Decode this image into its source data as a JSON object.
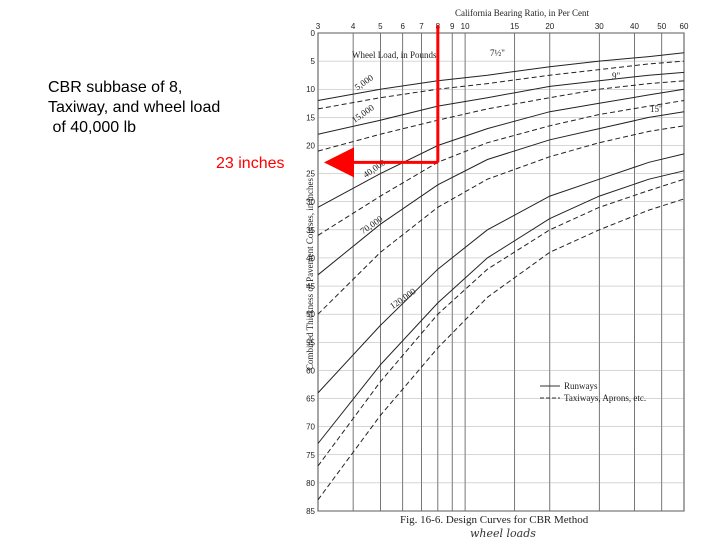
{
  "annotation": {
    "lines": [
      "CBR subbase of 8,",
      "Taxiway, and wheel load",
      " of 40,000 lb"
    ],
    "result": "23 inches"
  },
  "chart_data": {
    "type": "line",
    "title": "California Bearing Ratio, in Per Cent",
    "xlabel": "California Bearing Ratio, in Per Cent",
    "ylabel": "Combined Thickness of Pavement Courses, in Inches",
    "x_scale": "log",
    "xlim": [
      3,
      60
    ],
    "ylim": [
      0,
      85
    ],
    "y_inverted": true,
    "grid": true,
    "x_ticks": [
      "3",
      "4",
      "5",
      "6",
      "7",
      "8",
      "9",
      "10",
      "15",
      "20",
      "30",
      "40",
      "50",
      "60"
    ],
    "y_ticks": [
      "0",
      "5",
      "10",
      "15",
      "20",
      "25",
      "30",
      "35",
      "40",
      "45",
      "50",
      "55",
      "60",
      "65",
      "70",
      "75",
      "80",
      "85"
    ],
    "legend_title": "Wheel Load, in Pounds",
    "legend": [
      "Runways",
      "Taxiways, Aprons, etc."
    ],
    "tire_labels": [
      "7½\"",
      "9\"",
      "15\""
    ],
    "series": [
      {
        "name": "5,000",
        "style": "runway",
        "x": [
          3,
          5,
          8,
          12,
          20,
          30,
          45,
          60
        ],
        "y": [
          12,
          10,
          8.5,
          7.5,
          6,
          5,
          4.2,
          3.5
        ]
      },
      {
        "name": "5,000",
        "style": "taxiway",
        "x": [
          3,
          5,
          8,
          12,
          20,
          30,
          45,
          60
        ],
        "y": [
          13.5,
          11.5,
          10,
          9,
          7.5,
          6.5,
          5.5,
          5
        ]
      },
      {
        "name": "15,000",
        "style": "runway",
        "x": [
          3,
          5,
          8,
          12,
          20,
          30,
          45,
          60
        ],
        "y": [
          18,
          15.5,
          13,
          11.5,
          9.5,
          8.5,
          7.5,
          7
        ]
      },
      {
        "name": "15,000",
        "style": "taxiway",
        "x": [
          3,
          5,
          8,
          12,
          20,
          30,
          45,
          60
        ],
        "y": [
          21,
          18,
          15.5,
          13.5,
          11.5,
          10,
          9,
          8.5
        ]
      },
      {
        "name": "40,000",
        "style": "runway",
        "x": [
          3,
          5,
          8,
          12,
          20,
          30,
          45,
          60
        ],
        "y": [
          31,
          25,
          20,
          17,
          14,
          12.5,
          11,
          10
        ]
      },
      {
        "name": "40,000",
        "style": "taxiway",
        "x": [
          3,
          5,
          8,
          12,
          20,
          30,
          45,
          60
        ],
        "y": [
          36,
          29,
          23,
          19.5,
          16.5,
          14.5,
          13,
          12
        ]
      },
      {
        "name": "70,000",
        "style": "runway",
        "x": [
          3,
          5,
          8,
          12,
          20,
          30,
          45,
          60
        ],
        "y": [
          43,
          34,
          27,
          22.5,
          19,
          17,
          15,
          14
        ]
      },
      {
        "name": "70,000",
        "style": "taxiway",
        "x": [
          3,
          5,
          8,
          12,
          20,
          30,
          45,
          60
        ],
        "y": [
          50,
          39,
          31,
          26,
          22,
          19.5,
          17.5,
          16.5
        ]
      },
      {
        "name": "120,000",
        "style": "runway",
        "x": [
          3,
          5,
          8,
          12,
          20,
          30,
          45,
          60
        ],
        "y": [
          64,
          52,
          42,
          35,
          29,
          26,
          23,
          21.5
        ]
      },
      {
        "name": "120,000",
        "style": "taxiway",
        "x": [
          3,
          5,
          8,
          12,
          20,
          30,
          45,
          60
        ],
        "y": [
          77,
          62,
          50,
          42,
          35,
          31,
          28,
          26
        ]
      },
      {
        "name": "",
        "style": "runway",
        "x": [
          3,
          5,
          8,
          12,
          20,
          30,
          45,
          60
        ],
        "y": [
          73,
          59,
          48,
          40,
          33,
          29,
          26,
          24.5
        ]
      },
      {
        "name": "",
        "style": "taxiway",
        "x": [
          3,
          5,
          8,
          12,
          20,
          30,
          45,
          60
        ],
        "y": [
          83,
          68,
          56,
          47,
          39,
          35,
          31.5,
          29.5
        ]
      }
    ],
    "annotation_path": {
      "cbr": 8,
      "thickness": 23
    },
    "caption": "Fig. 16-6.  Design Curves for CBR Method",
    "handwritten_note": "wheel loads"
  }
}
